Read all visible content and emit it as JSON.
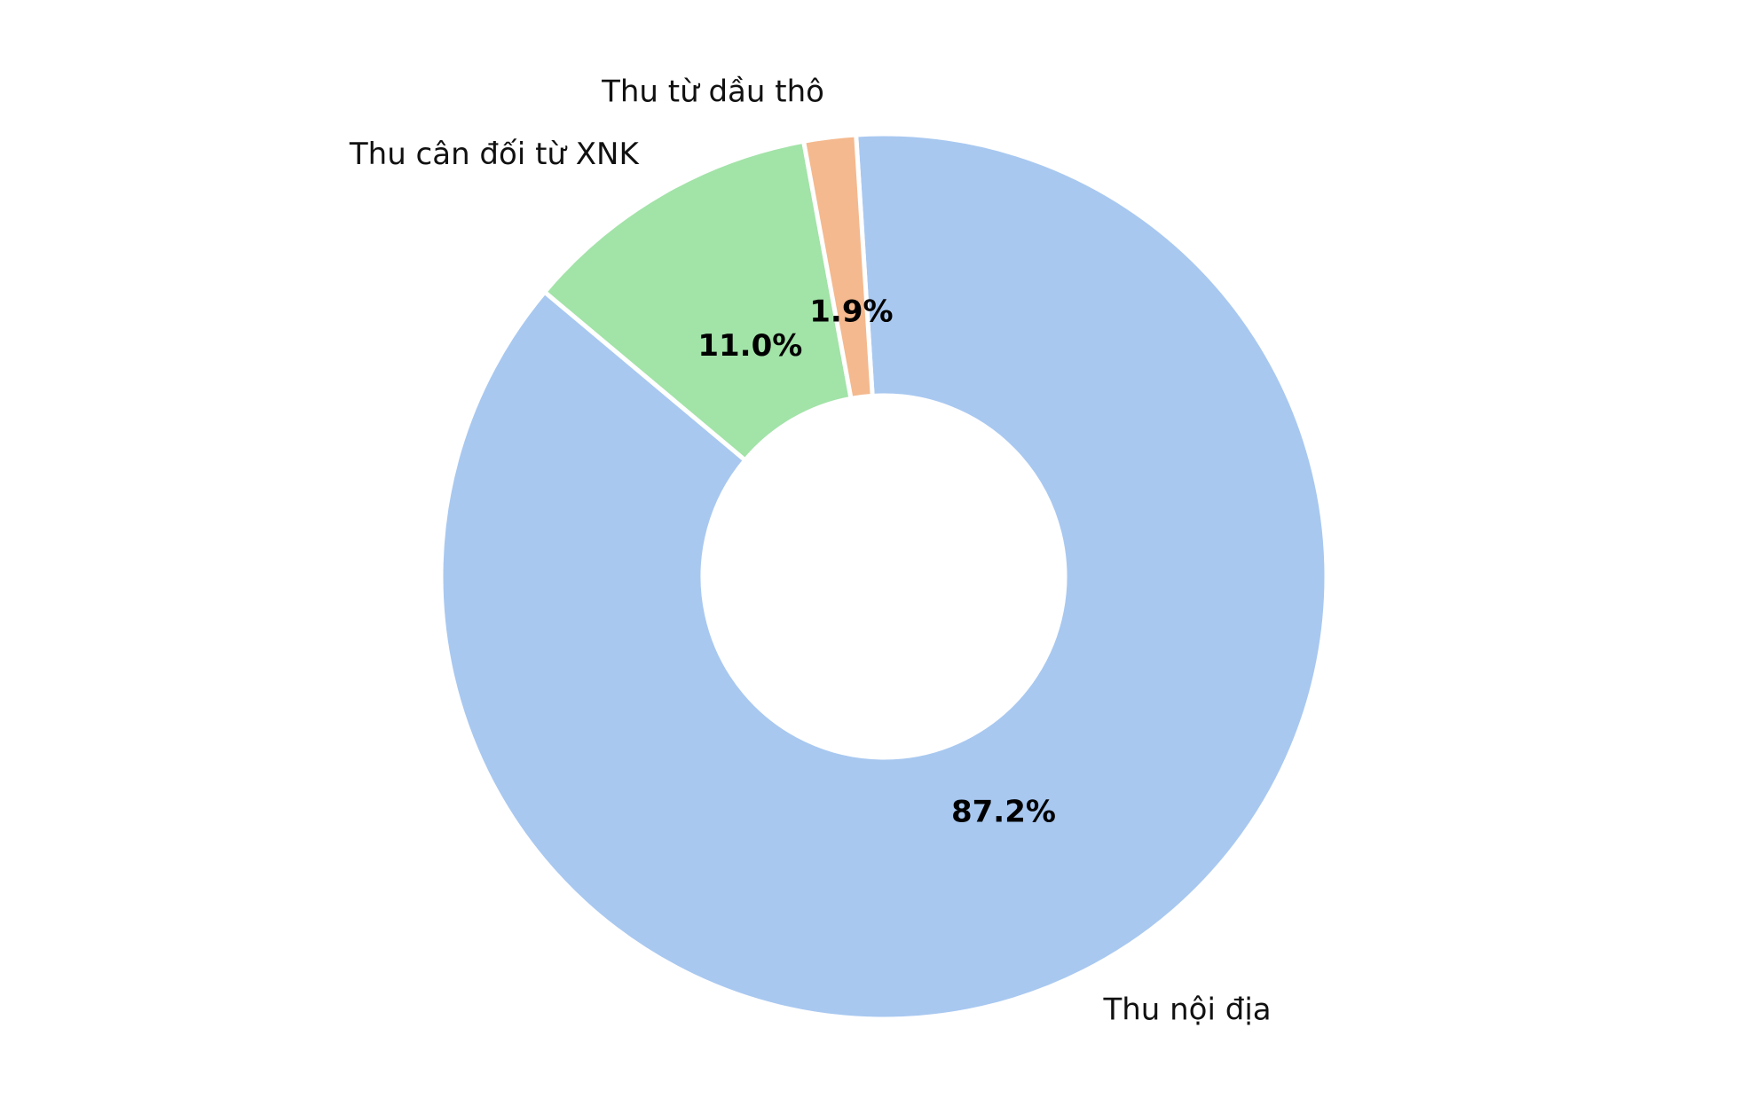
{
  "chart_data": {
    "type": "donut",
    "categories": [
      "Thu nội địa",
      "Thu cân đối từ XNK",
      "Thu từ dầu thô"
    ],
    "values": [
      87.2,
      11.0,
      1.9
    ],
    "value_labels": [
      "87.2%",
      "11.0%",
      "1.9%"
    ],
    "colors": [
      "#a8c8f0",
      "#a2e3a8",
      "#f4b98e"
    ]
  }
}
